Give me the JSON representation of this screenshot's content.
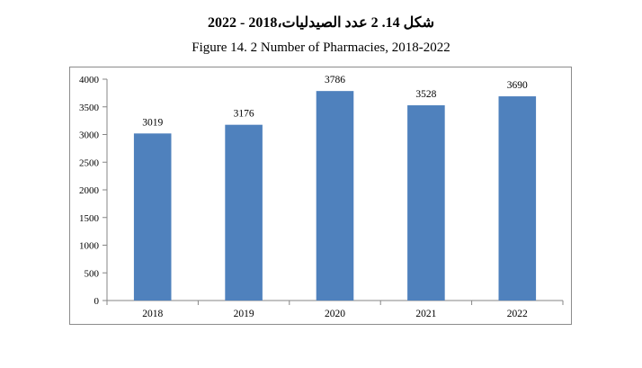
{
  "title_ar": "شكل 14. 2  عدد الصيدليات،2018 - 2022",
  "title_en": "Figure 14. 2 Number of Pharmacies, 2018-2022",
  "chart_data": {
    "type": "bar",
    "title": "Figure 14. 2 Number of Pharmacies, 2018-2022",
    "categories": [
      "2018",
      "2019",
      "2020",
      "2021",
      "2022"
    ],
    "values": [
      3019,
      3176,
      3786,
      3528,
      3690
    ],
    "data_labels": [
      "3019",
      "3176",
      "3786",
      "3528",
      "3690"
    ],
    "yticks": [
      0,
      500,
      1000,
      1500,
      2000,
      2500,
      3000,
      3500,
      4000
    ],
    "ylim": [
      0,
      4000
    ],
    "xlabel": "",
    "ylabel": "",
    "grid": false,
    "legend": "none",
    "bar_color": "#4f81bd"
  }
}
